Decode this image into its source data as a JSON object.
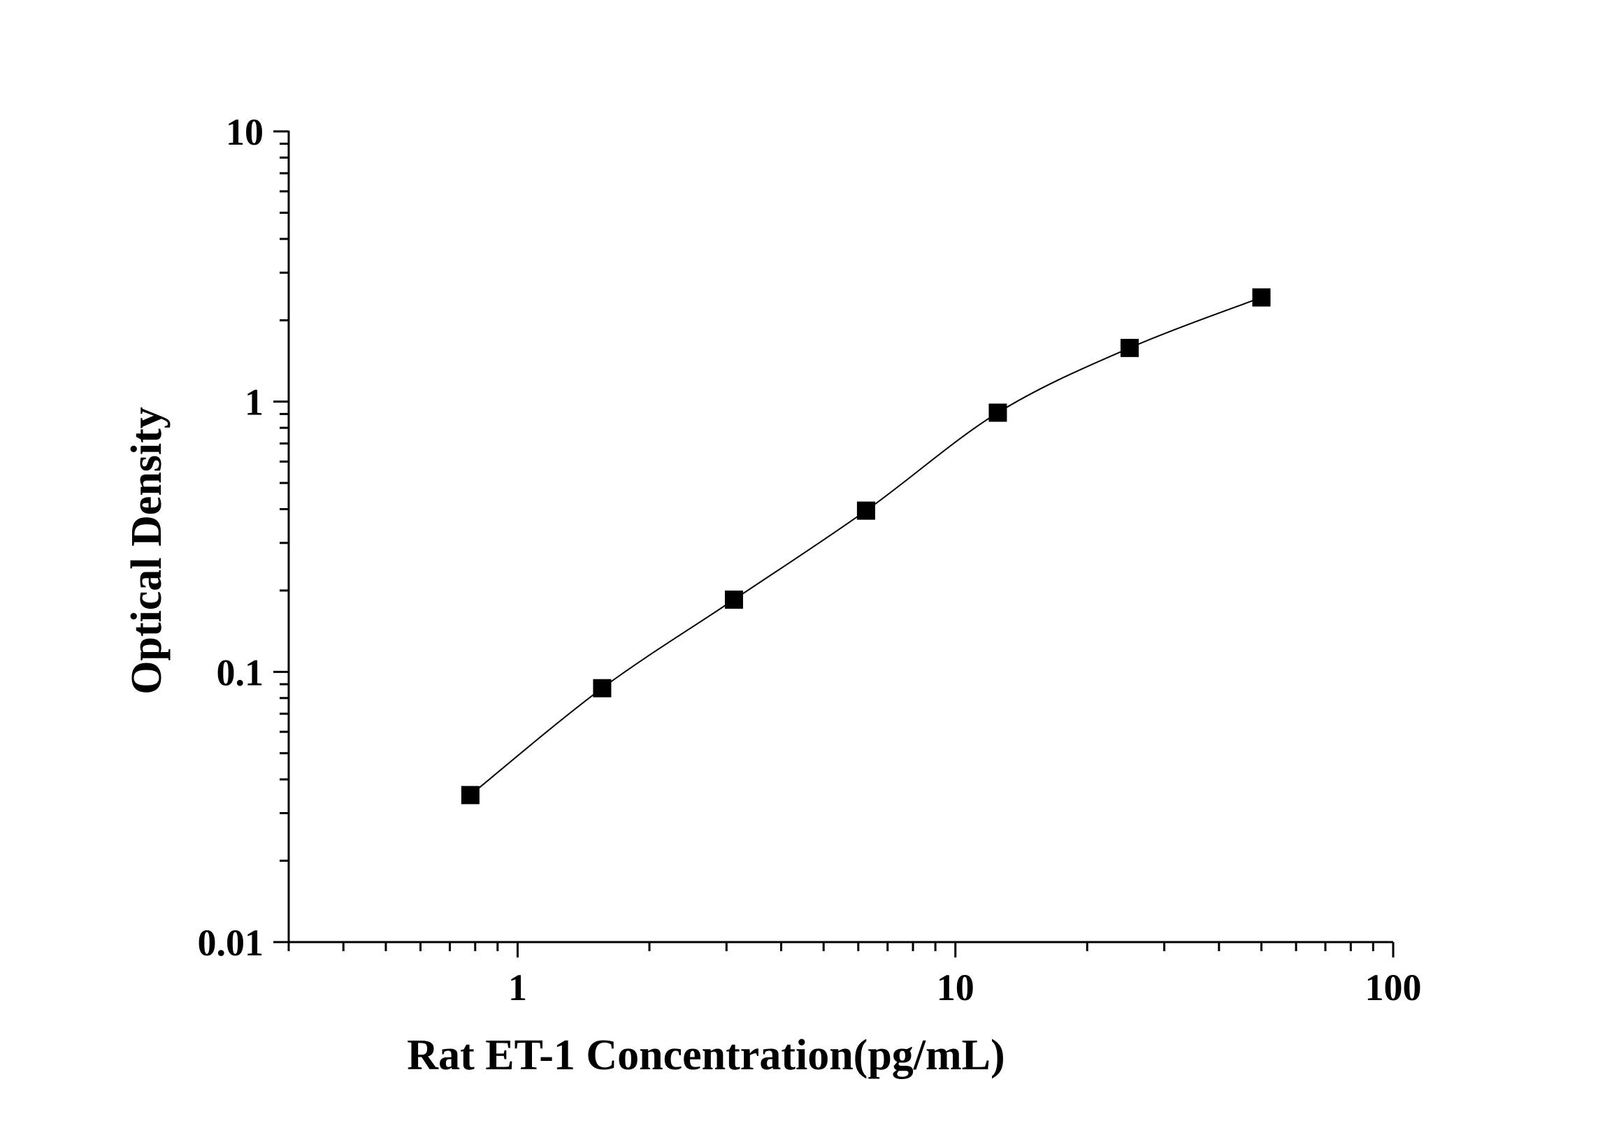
{
  "chart_data": {
    "type": "scatter",
    "title": "",
    "xlabel": "Rat ET-1 Concentration(pg/mL)",
    "ylabel": "Optical Density",
    "x_scale": "log",
    "y_scale": "log",
    "xlim": [
      0.3,
      100
    ],
    "ylim": [
      0.01,
      10
    ],
    "x_ticks": [
      {
        "value": 1,
        "label": "1"
      },
      {
        "value": 10,
        "label": "10"
      },
      {
        "value": 100,
        "label": "100"
      }
    ],
    "y_ticks": [
      {
        "value": 0.01,
        "label": "0.01"
      },
      {
        "value": 0.1,
        "label": "0.1"
      },
      {
        "value": 1,
        "label": "1"
      },
      {
        "value": 10,
        "label": "10"
      }
    ],
    "grid": false,
    "legend": "none",
    "marker": "filled-square",
    "fit_line": "smooth curve through points",
    "color": "#000000",
    "series": [
      {
        "x": [
          0.78,
          1.56,
          3.12,
          6.25,
          12.5,
          25,
          50
        ],
        "y": [
          0.035,
          0.087,
          0.185,
          0.395,
          0.91,
          1.58,
          2.43
        ]
      }
    ]
  }
}
